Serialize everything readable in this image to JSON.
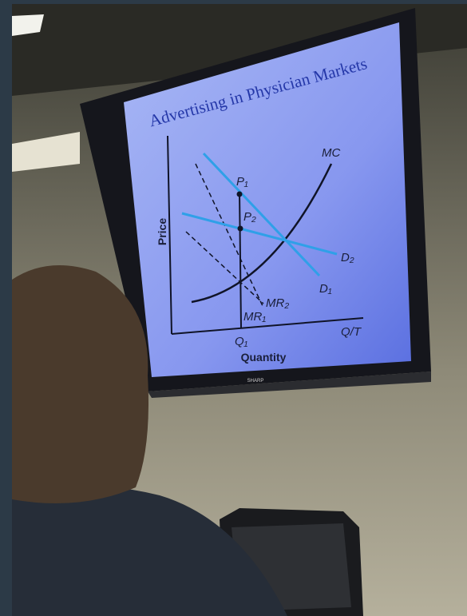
{
  "slide": {
    "title": "Advertising in Physician Markets",
    "y_axis_label": "Price",
    "x_axis_label": "Quantity",
    "curve_labels": {
      "mc": "MC",
      "p1": "P₁",
      "p2": "P₂",
      "d2": "D₂",
      "d1": "D₁",
      "mr2": "MR₂",
      "mr1": "MR₁",
      "q1": "Q₁",
      "qt": "Q/T"
    }
  },
  "tv_brand": "SHARP"
}
